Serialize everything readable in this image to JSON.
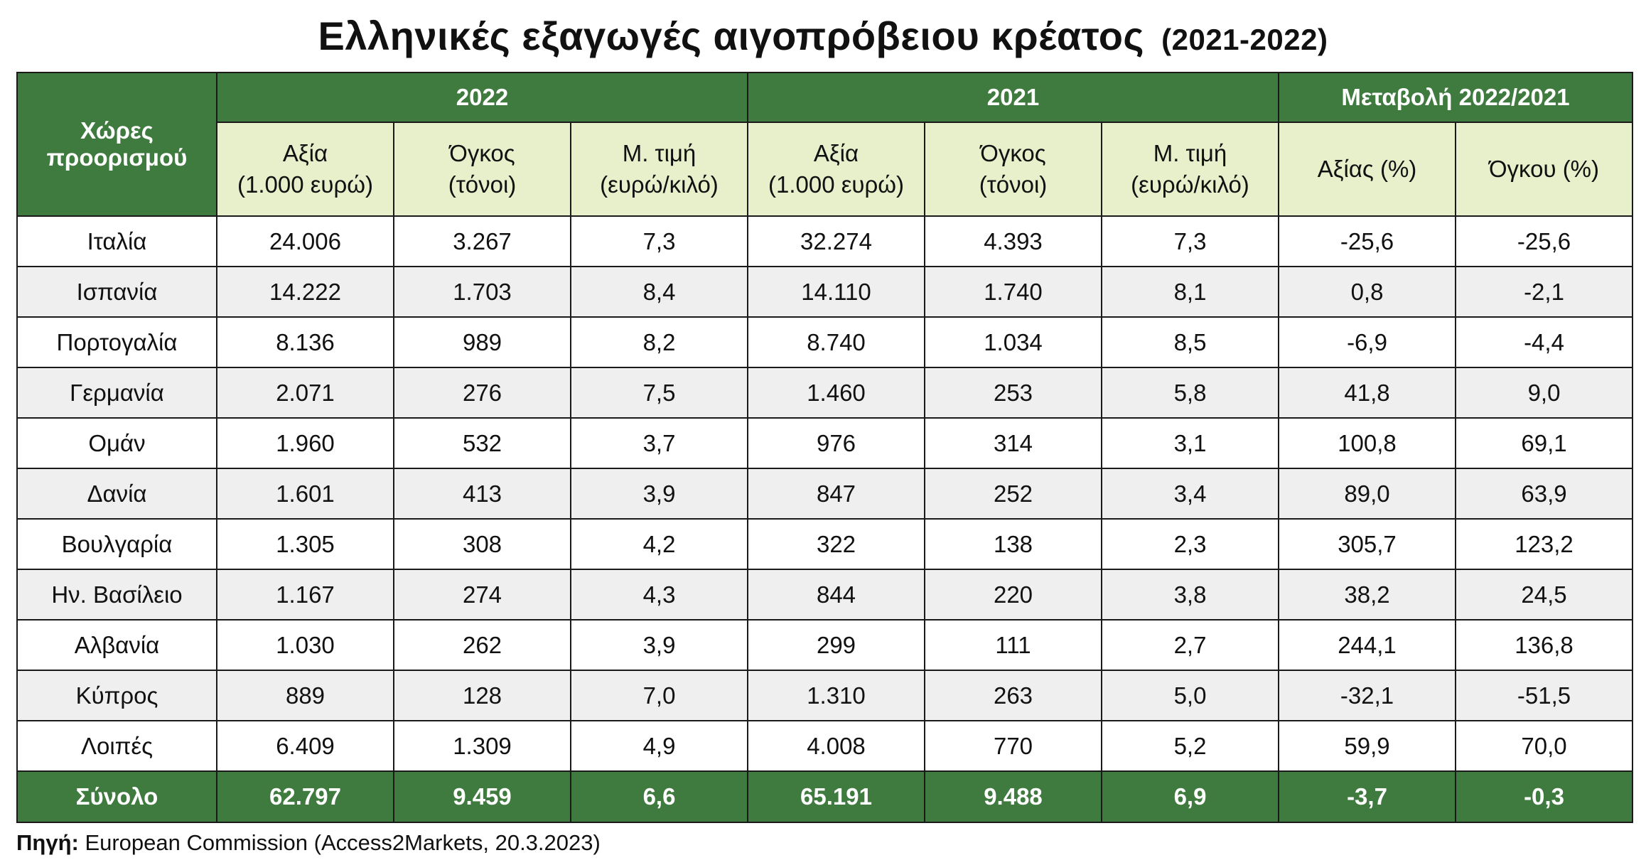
{
  "title": {
    "main": "Ελληνικές εξαγωγές αιγοπρόβειου κρέατος",
    "years": "(2021-2022)"
  },
  "header": {
    "countries_line1": "Χώρες",
    "countries_line2": "προορισμού",
    "group_2022": "2022",
    "group_2021": "2021",
    "group_change": "Μεταβολή 2022/2021",
    "value_line1": "Αξία",
    "value_line2": "(1.000 ευρώ)",
    "volume_line1": "Όγκος",
    "volume_line2": "(τόνοι)",
    "price_line1": "Μ. τιμή",
    "price_line2": "(ευρώ/κιλό)",
    "change_value": "Αξίας (%)",
    "change_volume": "Όγκου (%)"
  },
  "rows": [
    [
      "Ιταλία",
      "24.006",
      "3.267",
      "7,3",
      "32.274",
      "4.393",
      "7,3",
      "-25,6",
      "-25,6"
    ],
    [
      "Ισπανία",
      "14.222",
      "1.703",
      "8,4",
      "14.110",
      "1.740",
      "8,1",
      "0,8",
      "-2,1"
    ],
    [
      "Πορτογαλία",
      "8.136",
      "989",
      "8,2",
      "8.740",
      "1.034",
      "8,5",
      "-6,9",
      "-4,4"
    ],
    [
      "Γερμανία",
      "2.071",
      "276",
      "7,5",
      "1.460",
      "253",
      "5,8",
      "41,8",
      "9,0"
    ],
    [
      "Ομάν",
      "1.960",
      "532",
      "3,7",
      "976",
      "314",
      "3,1",
      "100,8",
      "69,1"
    ],
    [
      "Δανία",
      "1.601",
      "413",
      "3,9",
      "847",
      "252",
      "3,4",
      "89,0",
      "63,9"
    ],
    [
      "Βουλγαρία",
      "1.305",
      "308",
      "4,2",
      "322",
      "138",
      "2,3",
      "305,7",
      "123,2"
    ],
    [
      "Ην. Βασίλειο",
      "1.167",
      "274",
      "4,3",
      "844",
      "220",
      "3,8",
      "38,2",
      "24,5"
    ],
    [
      "Αλβανία",
      "1.030",
      "262",
      "3,9",
      "299",
      "111",
      "2,7",
      "244,1",
      "136,8"
    ],
    [
      "Κύπρος",
      "889",
      "128",
      "7,0",
      "1.310",
      "263",
      "5,0",
      "-32,1",
      "-51,5"
    ],
    [
      "Λοιπές",
      "6.409",
      "1.309",
      "4,9",
      "4.008",
      "770",
      "5,2",
      "59,9",
      "70,0"
    ]
  ],
  "total": [
    "Σύνολο",
    "62.797",
    "9.459",
    "6,6",
    "65.191",
    "9.488",
    "6,9",
    "-3,7",
    "-0,3"
  ],
  "source": {
    "label": "Πηγή:",
    "text": " European Commission (Access2Markets, 20.3.2023)"
  },
  "colors": {
    "header_green": "#3f7a3f",
    "subheader_bg": "#e7efcb",
    "stripe": "#efefef"
  }
}
